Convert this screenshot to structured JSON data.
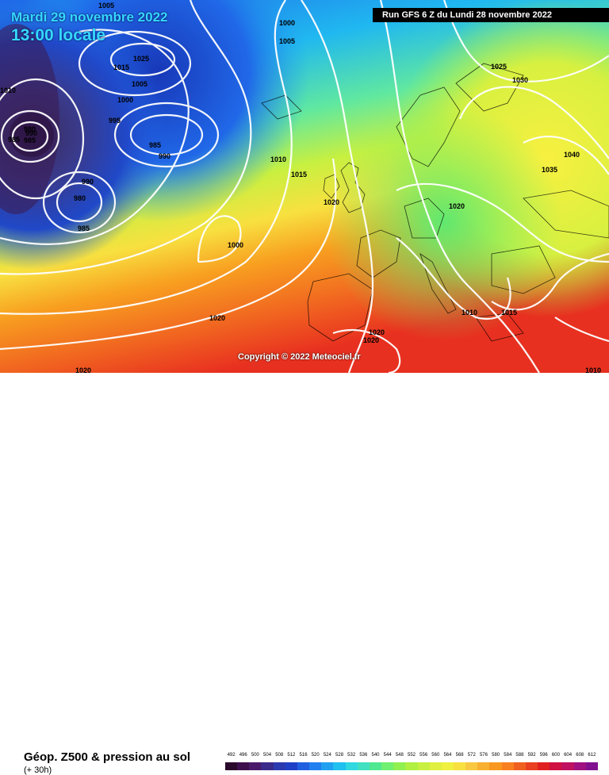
{
  "header": {
    "date": "Mardi 29 novembre 2022",
    "local_time": "13:00 locale",
    "run_info": "Run GFS 6 Z du Lundi 28 novembre 2022"
  },
  "map": {
    "copyright": "Copyright © 2022 Meteociel.fr",
    "isobar_labels": [
      "1005",
      "1000",
      "1005",
      "1025",
      "1015",
      "1005",
      "1000",
      "995",
      "985",
      "990",
      "990",
      "985",
      "980",
      "985",
      "990",
      "980",
      "985",
      "1000",
      "1010",
      "1015",
      "1020",
      "1020",
      "1025",
      "1030",
      "1035",
      "1040",
      "1020",
      "1010",
      "1015",
      "1020",
      "1020",
      "1010",
      "1020",
      "1010"
    ]
  },
  "footer": {
    "title": "Géop. Z500 & pression au sol",
    "lead_time": "(+ 30h)"
  },
  "legend": {
    "values": [
      "492",
      "496",
      "500",
      "504",
      "508",
      "512",
      "516",
      "520",
      "524",
      "528",
      "532",
      "536",
      "540",
      "544",
      "548",
      "552",
      "556",
      "560",
      "564",
      "568",
      "572",
      "576",
      "580",
      "584",
      "588",
      "592",
      "596",
      "600",
      "604",
      "608",
      "612"
    ],
    "colors": [
      "#2a0a2a",
      "#3d0f4d",
      "#4a1a6a",
      "#3a2a8a",
      "#2a3ab0",
      "#2040c8",
      "#2060e0",
      "#2080f0",
      "#20a0f0",
      "#20c0f0",
      "#30d8e0",
      "#40e0c0",
      "#50e890",
      "#70f070",
      "#90f050",
      "#b0f040",
      "#c8f040",
      "#e0f040",
      "#f0f040",
      "#f8e040",
      "#f8c840",
      "#f8b030",
      "#f89820",
      "#f88020",
      "#f06020",
      "#e84020",
      "#e02020",
      "#d01040",
      "#c01060",
      "#a01080",
      "#801090"
    ],
    "ramp_stops": [
      "#3a1050",
      "#2038b0",
      "#2070e8",
      "#20b0f0",
      "#40e0c8",
      "#70f070",
      "#b0f040",
      "#e8f040",
      "#f8d040",
      "#f8a020",
      "#f06020",
      "#e02020",
      "#c01060"
    ]
  }
}
